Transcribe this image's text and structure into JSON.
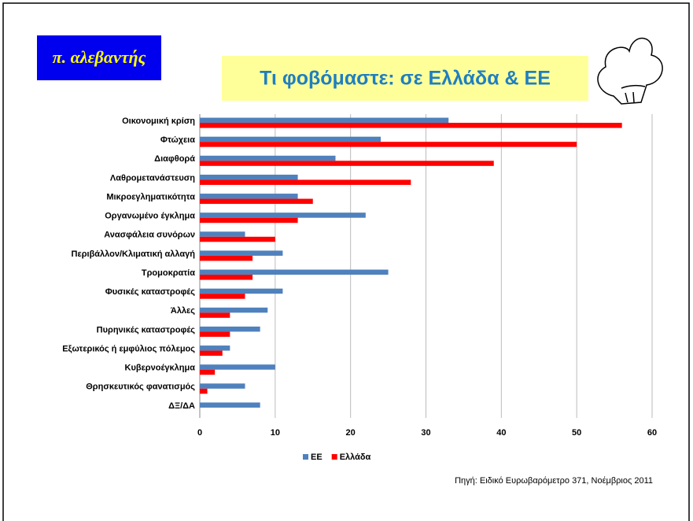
{
  "logo": "π. αλεβαντής",
  "source": "Πηγή: Ειδικό Ευρωβαρόμετρο 371, Νοέμβριος 2011",
  "chart_data": {
    "type": "hbar",
    "title": "Τι φοβόμαστε: σε Ελλάδα & ΕΕ",
    "categories": [
      "Οικονομική κρίση",
      "Φτώχεια",
      "Διαφθορά",
      "Λαθρομετανάστευση",
      "Μικροεγληματικότητα",
      "Οργανωμένο έγκλημα",
      "Ανασφάλεια συνόρων",
      "Περιβάλλον/Κλιματική αλλαγή",
      "Τρομοκρατία",
      "Φυσικές καταστροφές",
      "Άλλες",
      "Πυρηνικές καταστροφές",
      "Εξωτερικός ή εμφύλιος πόλεμος",
      "Κυβερνοέγκλημα",
      "Θρησκευτικός φανατισμός",
      "ΔΞ/ΔΑ"
    ],
    "series": [
      {
        "name": "ΕΕ",
        "color": "#4f81bd",
        "values": [
          33,
          24,
          18,
          13,
          13,
          22,
          6,
          11,
          25,
          11,
          9,
          8,
          4,
          10,
          6,
          8
        ]
      },
      {
        "name": "Ελλάδα",
        "color": "#ff0000",
        "values": [
          56,
          50,
          39,
          28,
          15,
          13,
          10,
          7,
          7,
          6,
          4,
          4,
          3,
          2,
          1,
          0
        ]
      }
    ],
    "xlim": [
      0,
      60
    ],
    "xticks": [
      0,
      10,
      20,
      30,
      40,
      50,
      60
    ],
    "grid": true,
    "legend": "bottom"
  }
}
